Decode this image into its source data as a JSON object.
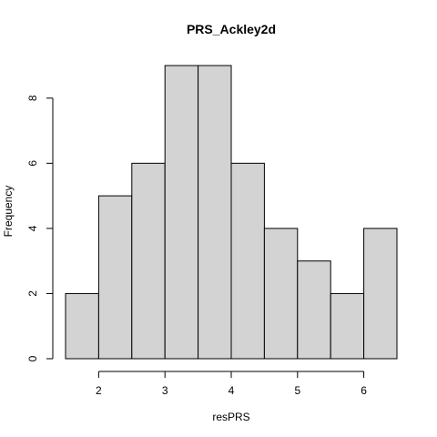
{
  "chart_data": {
    "type": "bar",
    "title": "PRS_Ackley2d",
    "xlabel": "resPRS",
    "ylabel": "Frequency",
    "bins": [
      {
        "start": 1.5,
        "end": 2.0,
        "count": 2
      },
      {
        "start": 2.0,
        "end": 2.5,
        "count": 5
      },
      {
        "start": 2.5,
        "end": 3.0,
        "count": 6
      },
      {
        "start": 3.0,
        "end": 3.5,
        "count": 9
      },
      {
        "start": 3.5,
        "end": 4.0,
        "count": 9
      },
      {
        "start": 4.0,
        "end": 4.5,
        "count": 6
      },
      {
        "start": 4.5,
        "end": 5.0,
        "count": 4
      },
      {
        "start": 5.0,
        "end": 5.5,
        "count": 3
      },
      {
        "start": 5.5,
        "end": 6.0,
        "count": 2
      },
      {
        "start": 6.0,
        "end": 6.5,
        "count": 4
      }
    ],
    "xticks": [
      "2",
      "3",
      "4",
      "5",
      "6"
    ],
    "yticks": [
      "0",
      "2",
      "4",
      "6",
      "8"
    ],
    "xlim": [
      1.5,
      6.5
    ],
    "ylim": [
      0,
      9
    ],
    "bar_color": "#d3d3d3",
    "grid": false
  }
}
